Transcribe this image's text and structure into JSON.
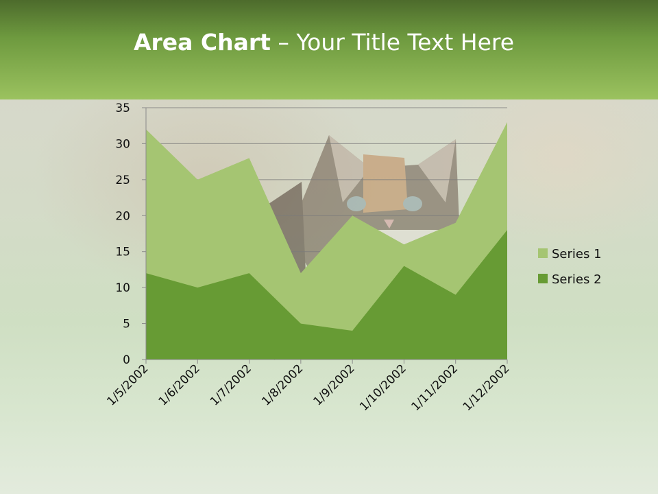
{
  "slide": {
    "title_bold": "Area Chart",
    "title_rest": " – Your Title Text Here"
  },
  "colors": {
    "series1": "#a5c572",
    "series2": "#679b34",
    "gridline": "#7a7a7a",
    "axis": "#8a8a8a"
  },
  "chart_data": {
    "type": "area",
    "title": "",
    "xlabel": "",
    "ylabel": "",
    "x": [
      "1/5/2002",
      "1/6/2002",
      "1/7/2002",
      "1/8/2002",
      "1/9/2002",
      "1/10/2002",
      "1/11/2002",
      "1/12/2002"
    ],
    "series": [
      {
        "name": "Series 1",
        "values": [
          32,
          25,
          28,
          12,
          20,
          16,
          19,
          33
        ]
      },
      {
        "name": "Series 2",
        "values": [
          12,
          10,
          12,
          5,
          4,
          13,
          9,
          18
        ]
      }
    ],
    "ylim": [
      0,
      35
    ],
    "yticks": [
      "0",
      "5",
      "10",
      "15",
      "20",
      "25",
      "30",
      "35"
    ],
    "grid": true,
    "legend": "right"
  }
}
